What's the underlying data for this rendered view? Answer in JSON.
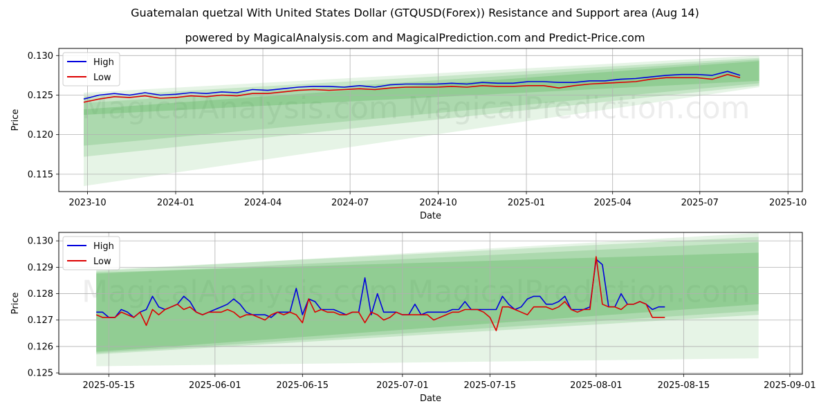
{
  "titles": {
    "main": "Guatemalan quetzal With United States Dollar (GTQUSD(Forex)) Resistance and Support area (Aug 14)",
    "sub": "powered by MagicalAnalysis.com and MagicalPrediction.com and Predict-Price.com"
  },
  "watermarks": [
    "MagicalAnalysis.com",
    "MagicalPrediction.com"
  ],
  "colors": {
    "high": "#0000dd",
    "low": "#dd0000",
    "band": "#4caf50",
    "grid": "#b0b0b0"
  },
  "chart_data": [
    {
      "type": "line",
      "xlabel": "Date",
      "ylabel": "Price",
      "xlim": [
        "2023-09-01",
        "2025-10-16"
      ],
      "ylim": [
        0.1128,
        0.1309
      ],
      "x_ticks": [
        "2023-10",
        "2024-01",
        "2024-04",
        "2024-07",
        "2024-10",
        "2025-01",
        "2025-04",
        "2025-07",
        "2025-10"
      ],
      "x_tick_dates": [
        "2023-10-01",
        "2024-01-01",
        "2024-04-01",
        "2024-07-01",
        "2024-10-01",
        "2025-01-01",
        "2025-04-01",
        "2025-07-01",
        "2025-10-01"
      ],
      "y_ticks": [
        "0.115",
        "0.120",
        "0.125",
        "0.130"
      ],
      "y_tick_values": [
        0.115,
        0.12,
        0.125,
        0.13
      ],
      "legend": {
        "position": "top-left",
        "entries": [
          "High",
          "Low"
        ]
      },
      "grid": true,
      "x": [
        "2023-09-27",
        "2023-10-13",
        "2023-10-29",
        "2023-11-14",
        "2023-11-30",
        "2023-12-16",
        "2024-01-01",
        "2024-01-17",
        "2024-02-02",
        "2024-02-18",
        "2024-03-05",
        "2024-03-21",
        "2024-04-06",
        "2024-04-22",
        "2024-05-08",
        "2024-05-24",
        "2024-06-09",
        "2024-06-25",
        "2024-07-11",
        "2024-07-27",
        "2024-08-12",
        "2024-08-28",
        "2024-09-13",
        "2024-09-29",
        "2024-10-15",
        "2024-10-31",
        "2024-11-16",
        "2024-12-02",
        "2024-12-18",
        "2025-01-03",
        "2025-01-19",
        "2025-02-04",
        "2025-02-20",
        "2025-03-08",
        "2025-03-24",
        "2025-04-09",
        "2025-04-25",
        "2025-05-11",
        "2025-05-27",
        "2025-06-12",
        "2025-06-28",
        "2025-07-14",
        "2025-07-30",
        "2025-08-12"
      ],
      "series": [
        {
          "name": "High",
          "values": [
            0.1245,
            0.125,
            0.1252,
            0.125,
            0.1253,
            0.125,
            0.1251,
            0.1253,
            0.1252,
            0.1254,
            0.1253,
            0.1257,
            0.1256,
            0.1258,
            0.126,
            0.1261,
            0.1261,
            0.126,
            0.1262,
            0.126,
            0.1263,
            0.1264,
            0.1264,
            0.1264,
            0.1265,
            0.1264,
            0.1266,
            0.1265,
            0.1265,
            0.1267,
            0.1267,
            0.1266,
            0.1266,
            0.1268,
            0.1268,
            0.127,
            0.1271,
            0.1273,
            0.1275,
            0.1276,
            0.1276,
            0.1275,
            0.128,
            0.1275
          ]
        },
        {
          "name": "Low",
          "values": [
            0.1241,
            0.1245,
            0.1248,
            0.1247,
            0.1249,
            0.1246,
            0.1247,
            0.1249,
            0.1248,
            0.125,
            0.1249,
            0.1252,
            0.1252,
            0.1254,
            0.1256,
            0.1257,
            0.1256,
            0.1257,
            0.1258,
            0.1257,
            0.1259,
            0.126,
            0.126,
            0.126,
            0.1261,
            0.126,
            0.1262,
            0.1261,
            0.1261,
            0.1262,
            0.1262,
            0.1259,
            0.1262,
            0.1264,
            0.1265,
            0.1266,
            0.1267,
            0.127,
            0.1272,
            0.1272,
            0.1272,
            0.127,
            0.1276,
            0.1272
          ]
        }
      ],
      "bands": [
        {
          "x": [
            "2023-09-27",
            "2025-09-01"
          ],
          "upper": [
            0.1253,
            0.13
          ],
          "lower": [
            0.1135,
            0.126
          ]
        },
        {
          "x": [
            "2023-09-27",
            "2025-09-01"
          ],
          "upper": [
            0.1248,
            0.1297
          ],
          "lower": [
            0.1172,
            0.1262
          ]
        },
        {
          "x": [
            "2023-09-27",
            "2025-09-01"
          ],
          "upper": [
            0.124,
            0.1295
          ],
          "lower": [
            0.1186,
            0.1265
          ]
        },
        {
          "x": [
            "2023-09-27",
            "2025-09-01"
          ],
          "upper": [
            0.1232,
            0.1293
          ],
          "lower": [
            0.1225,
            0.1268
          ]
        }
      ]
    },
    {
      "type": "line",
      "xlabel": "Date",
      "ylabel": "Price",
      "xlim": [
        "2025-05-07",
        "2025-09-03"
      ],
      "ylim": [
        0.12495,
        0.13032
      ],
      "x_ticks": [
        "2025-05-15",
        "2025-06-01",
        "2025-06-15",
        "2025-07-01",
        "2025-07-15",
        "2025-08-01",
        "2025-08-15",
        "2025-09-01"
      ],
      "x_tick_dates": [
        "2025-05-15",
        "2025-06-01",
        "2025-06-15",
        "2025-07-01",
        "2025-07-15",
        "2025-08-01",
        "2025-08-15",
        "2025-09-01"
      ],
      "y_ticks": [
        "0.125",
        "0.126",
        "0.127",
        "0.128",
        "0.129",
        "0.130"
      ],
      "y_tick_values": [
        0.125,
        0.126,
        0.127,
        0.128,
        0.129,
        0.13
      ],
      "legend": {
        "position": "top-left",
        "entries": [
          "High",
          "Low"
        ]
      },
      "grid": true,
      "x": [
        "2025-05-13",
        "2025-05-14",
        "2025-05-15",
        "2025-05-16",
        "2025-05-17",
        "2025-05-18",
        "2025-05-19",
        "2025-05-20",
        "2025-05-21",
        "2025-05-22",
        "2025-05-23",
        "2025-05-24",
        "2025-05-25",
        "2025-05-26",
        "2025-05-27",
        "2025-05-28",
        "2025-05-29",
        "2025-05-30",
        "2025-05-31",
        "2025-06-01",
        "2025-06-02",
        "2025-06-03",
        "2025-06-04",
        "2025-06-05",
        "2025-06-06",
        "2025-06-07",
        "2025-06-08",
        "2025-06-09",
        "2025-06-10",
        "2025-06-11",
        "2025-06-12",
        "2025-06-13",
        "2025-06-14",
        "2025-06-15",
        "2025-06-16",
        "2025-06-17",
        "2025-06-18",
        "2025-06-19",
        "2025-06-20",
        "2025-06-21",
        "2025-06-22",
        "2025-06-23",
        "2025-06-24",
        "2025-06-25",
        "2025-06-26",
        "2025-06-27",
        "2025-06-28",
        "2025-06-29",
        "2025-06-30",
        "2025-07-01",
        "2025-07-02",
        "2025-07-03",
        "2025-07-04",
        "2025-07-05",
        "2025-07-06",
        "2025-07-07",
        "2025-07-08",
        "2025-07-09",
        "2025-07-10",
        "2025-07-11",
        "2025-07-12",
        "2025-07-13",
        "2025-07-14",
        "2025-07-15",
        "2025-07-16",
        "2025-07-17",
        "2025-07-18",
        "2025-07-19",
        "2025-07-20",
        "2025-07-21",
        "2025-07-22",
        "2025-07-23",
        "2025-07-24",
        "2025-07-25",
        "2025-07-26",
        "2025-07-27",
        "2025-07-28",
        "2025-07-29",
        "2025-07-30",
        "2025-07-31",
        "2025-08-01",
        "2025-08-02",
        "2025-08-03",
        "2025-08-04",
        "2025-08-05",
        "2025-08-06",
        "2025-08-07",
        "2025-08-08",
        "2025-08-09",
        "2025-08-10",
        "2025-08-11",
        "2025-08-12"
      ],
      "series": [
        {
          "name": "High",
          "values": [
            0.1273,
            0.1273,
            0.1271,
            0.1271,
            0.1274,
            0.1273,
            0.1271,
            0.1273,
            0.1274,
            0.1279,
            0.1275,
            0.1274,
            0.1275,
            0.1276,
            0.1279,
            0.1277,
            0.1273,
            0.1272,
            0.1273,
            0.1274,
            0.1275,
            0.1276,
            0.1278,
            0.1276,
            0.1273,
            0.1272,
            0.1272,
            0.1272,
            0.1271,
            0.1273,
            0.1273,
            0.1273,
            0.1282,
            0.1272,
            0.1278,
            0.1277,
            0.1274,
            0.1274,
            0.1274,
            0.1273,
            0.1272,
            0.1273,
            0.1273,
            0.1286,
            0.1272,
            0.128,
            0.1273,
            0.1273,
            0.1273,
            0.1272,
            0.1272,
            0.1276,
            0.1272,
            0.1273,
            0.1273,
            0.1273,
            0.1273,
            0.1274,
            0.1274,
            0.1277,
            0.1274,
            0.1274,
            0.1274,
            0.1274,
            0.1274,
            0.1279,
            0.1276,
            0.1274,
            0.1275,
            0.1278,
            0.1279,
            0.1279,
            0.1276,
            0.1276,
            0.1277,
            0.1279,
            0.1274,
            0.1274,
            0.1274,
            0.1275,
            0.1293,
            0.1291,
            0.1275,
            0.1275,
            0.128,
            0.1276,
            0.1276,
            0.1277,
            0.1276,
            0.1274,
            0.1275,
            0.1275
          ]
        },
        {
          "name": "Low",
          "values": [
            0.1272,
            0.1271,
            0.1271,
            0.1271,
            0.1273,
            0.1272,
            0.1271,
            0.1273,
            0.1268,
            0.1274,
            0.1272,
            0.1274,
            0.1275,
            0.1276,
            0.1274,
            0.1275,
            0.1273,
            0.1272,
            0.1273,
            0.1273,
            0.1273,
            0.1274,
            0.1273,
            0.1271,
            0.1272,
            0.1272,
            0.1271,
            0.127,
            0.1272,
            0.1273,
            0.1272,
            0.1273,
            0.1272,
            0.1269,
            0.1278,
            0.1273,
            0.1274,
            0.1273,
            0.1273,
            0.1272,
            0.1272,
            0.1273,
            0.1273,
            0.1269,
            0.1273,
            0.1272,
            0.127,
            0.1271,
            0.1273,
            0.1272,
            0.1272,
            0.1272,
            0.1272,
            0.1272,
            0.127,
            0.1271,
            0.1272,
            0.1273,
            0.1273,
            0.1274,
            0.1274,
            0.1274,
            0.1273,
            0.1271,
            0.1266,
            0.1275,
            0.1275,
            0.1274,
            0.1273,
            0.1272,
            0.1275,
            0.1275,
            0.1275,
            0.1274,
            0.1275,
            0.1277,
            0.1274,
            0.1273,
            0.1274,
            0.1274,
            0.1294,
            0.1276,
            0.1275,
            0.1275,
            0.1274,
            0.1276,
            0.1276,
            0.1277,
            0.1276,
            0.1271,
            0.1271,
            0.1271
          ]
        }
      ],
      "bands": [
        {
          "x": [
            "2025-05-13",
            "2025-08-27"
          ],
          "upper": [
            0.12885,
            0.1303
          ],
          "lower": [
            0.12525,
            0.12555
          ]
        },
        {
          "x": [
            "2025-05-13",
            "2025-08-27"
          ],
          "upper": [
            0.1289,
            0.13015
          ],
          "lower": [
            0.1257,
            0.1272
          ]
        },
        {
          "x": [
            "2025-05-13",
            "2025-08-27"
          ],
          "upper": [
            0.12875,
            0.12995
          ],
          "lower": [
            0.12575,
            0.12735
          ]
        },
        {
          "x": [
            "2025-05-13",
            "2025-08-27"
          ],
          "upper": [
            0.1288,
            0.12955
          ],
          "lower": [
            0.1258,
            0.1276
          ]
        }
      ]
    }
  ]
}
